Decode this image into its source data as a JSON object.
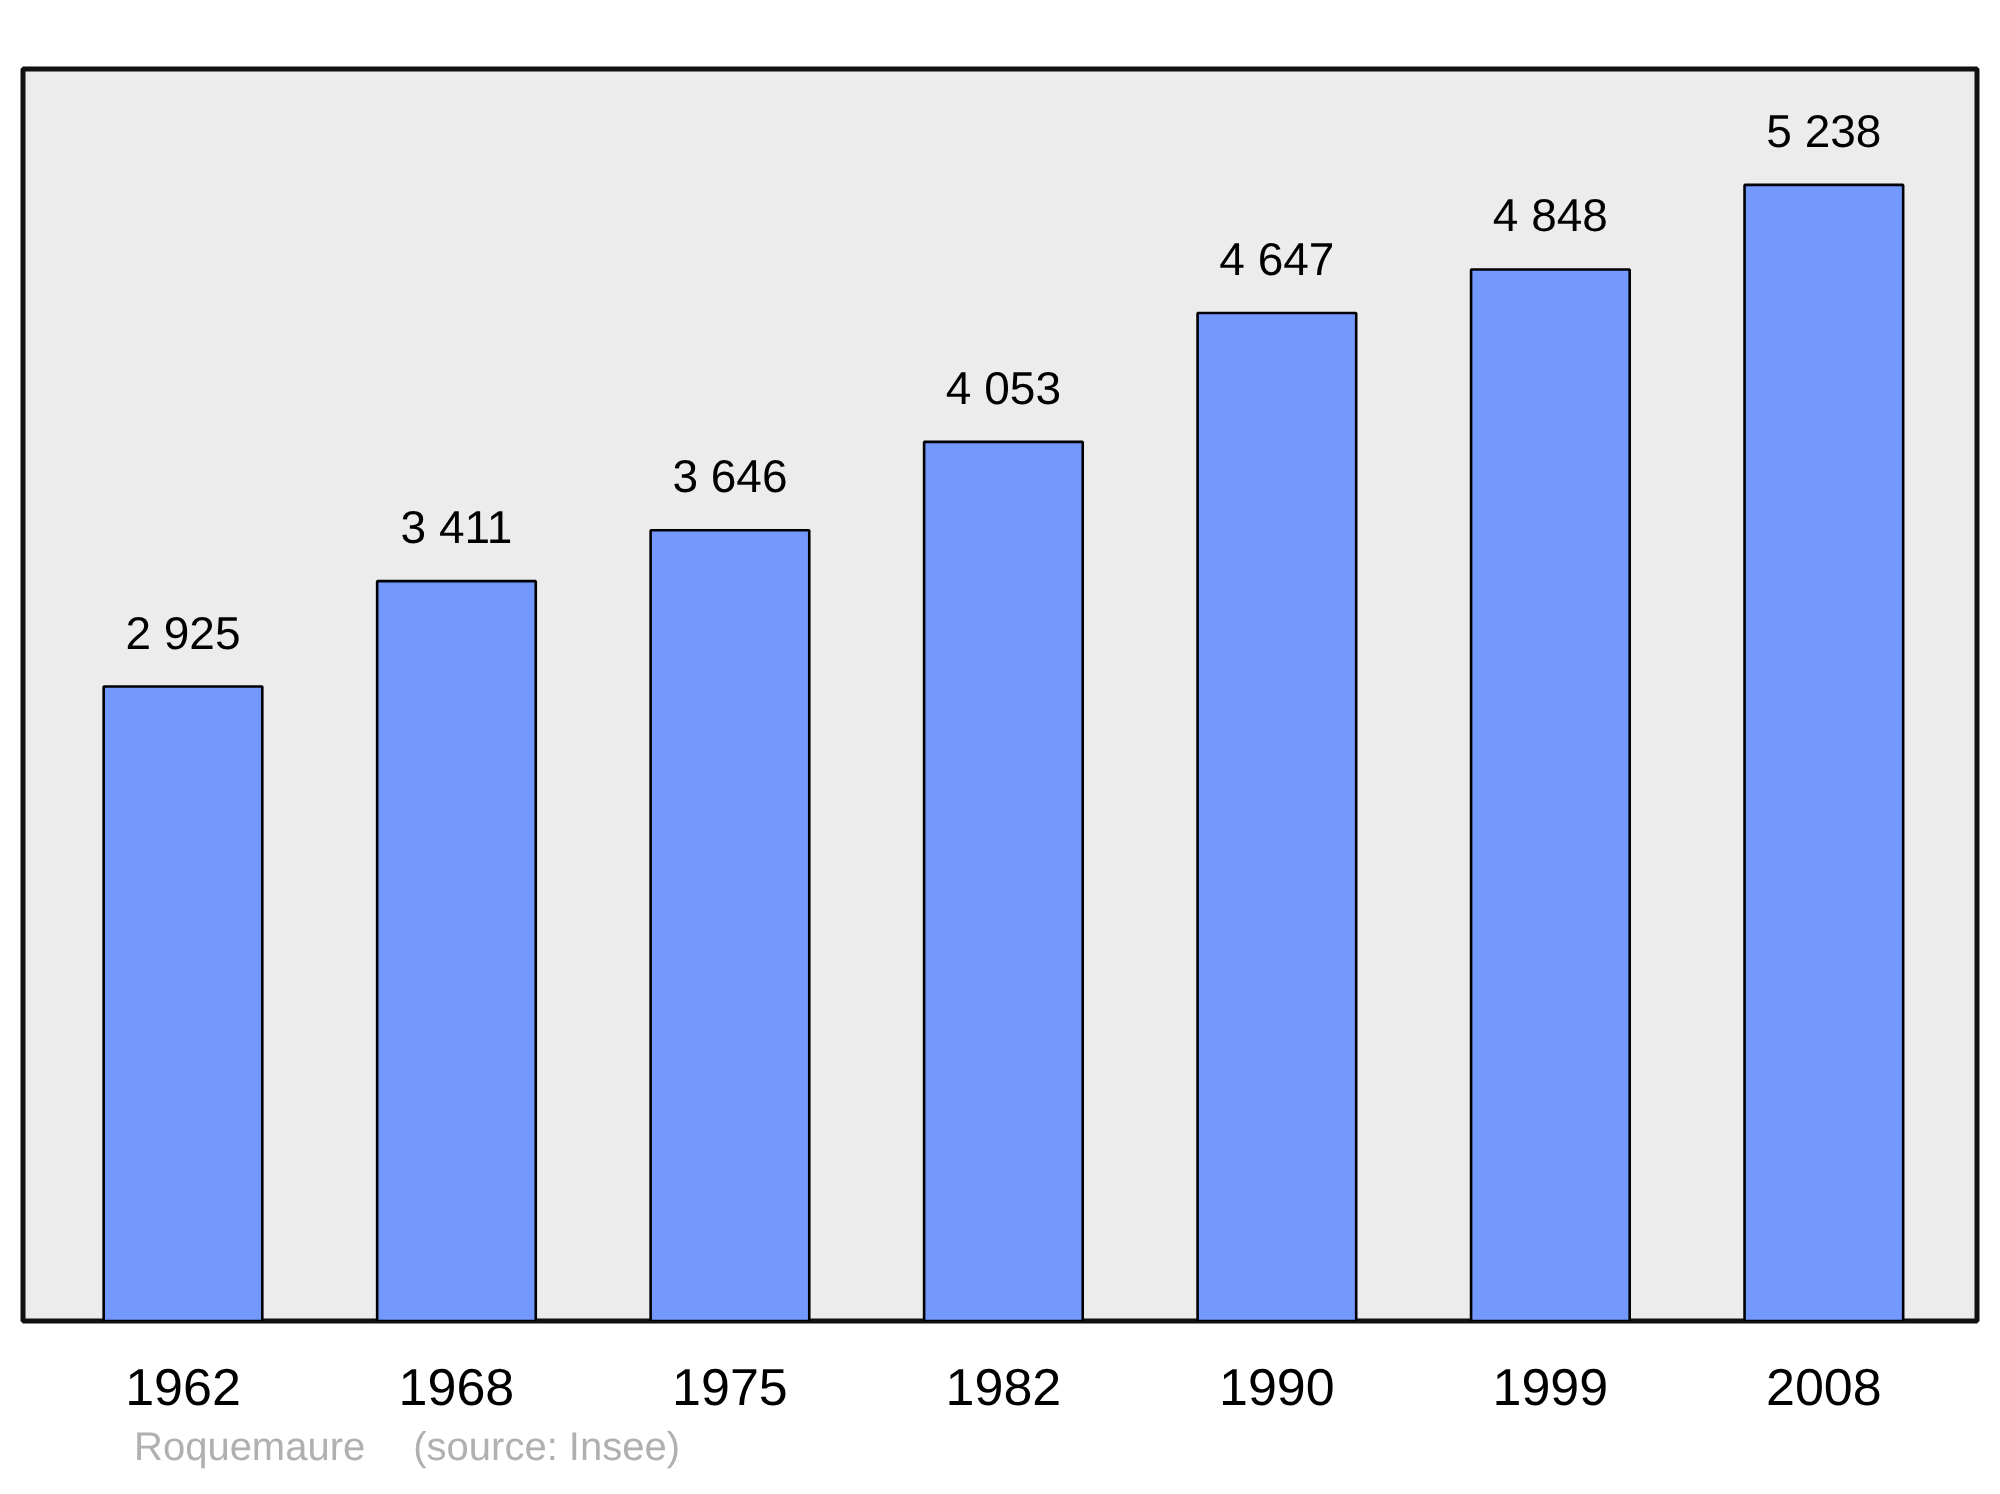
{
  "chart_data": {
    "type": "bar",
    "categories": [
      "1962",
      "1968",
      "1975",
      "1982",
      "1990",
      "1999",
      "2008"
    ],
    "values": [
      2925,
      3411,
      3646,
      4053,
      4647,
      4848,
      5238
    ],
    "value_labels": [
      "2 925",
      "3 411",
      "3 646",
      "4 053",
      "4 647",
      "4 848",
      "5 238"
    ],
    "color": "#7399ff",
    "grid": false,
    "tick_labels": "x",
    "annotations": [
      "Roquemaure",
      "(source: Insee)"
    ]
  }
}
